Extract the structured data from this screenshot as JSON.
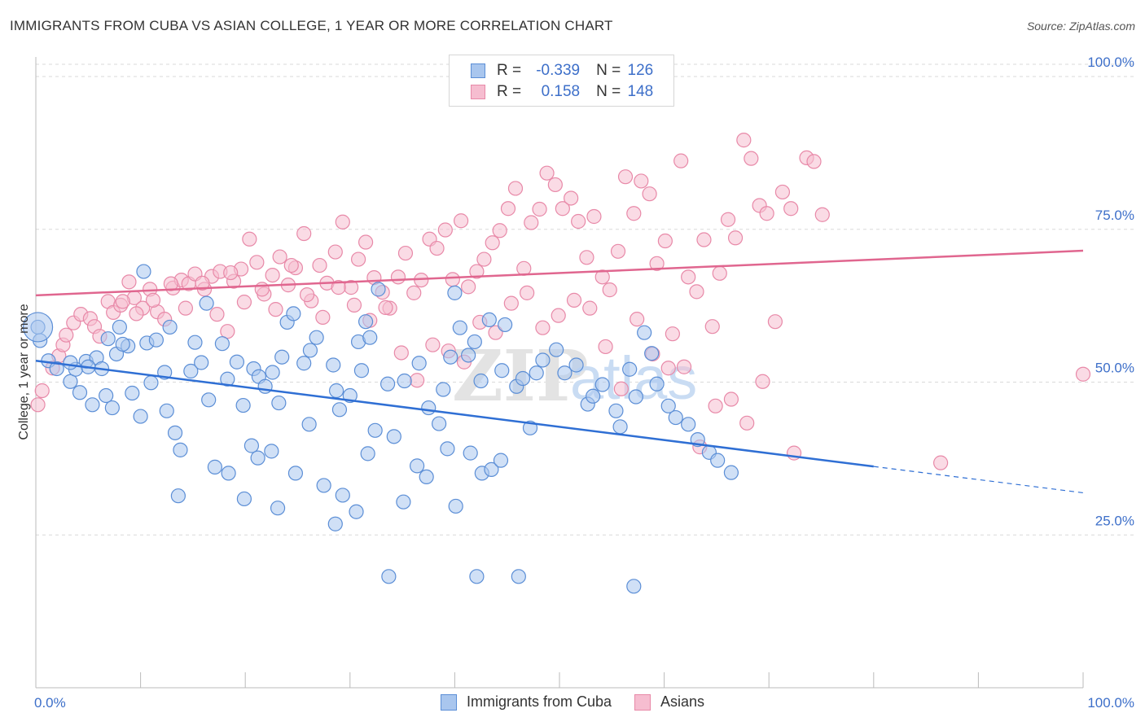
{
  "header": {
    "title": "IMMIGRANTS FROM CUBA VS ASIAN COLLEGE, 1 YEAR OR MORE CORRELATION CHART",
    "source": "Source: ZipAtlas.com"
  },
  "legend": {
    "r_label": "R =",
    "n_label": "N =",
    "rows": [
      {
        "r": "-0.339",
        "n": "126"
      },
      {
        "r": "0.158",
        "n": "148"
      }
    ]
  },
  "watermark": {
    "zip": "ZIP",
    "atlas": "atlas"
  },
  "colors": {
    "blue_fill": "#a9c6ee",
    "blue_stroke": "#5b8ed6",
    "blue_line": "#2f6fd4",
    "pink_fill": "#f6bdd0",
    "pink_stroke": "#e889a8",
    "pink_line": "#e0668f",
    "tick_text": "#3d6fc9",
    "grid": "#d9d9d9"
  },
  "chart_data": {
    "type": "scatter",
    "title": "IMMIGRANTS FROM CUBA VS ASIAN COLLEGE, 1 YEAR OR MORE CORRELATION CHART",
    "xlabel": "",
    "ylabel": "College, 1 year or more",
    "xlim": [
      0,
      100
    ],
    "ylim": [
      0,
      102
    ],
    "x_tick_labels": [
      "0.0%",
      "100.0%"
    ],
    "y_ticks": [
      25,
      50,
      75,
      100
    ],
    "y_tick_labels": [
      "25.0%",
      "50.0%",
      "75.0%",
      "100.0%"
    ],
    "grid": "horizontal dashed",
    "legend_position": "bottom",
    "series": [
      {
        "name": "Immigrants from Cuba",
        "color": "#5b8ed6",
        "trend": {
          "x": [
            0,
            80
          ],
          "y": [
            53.5,
            36.2
          ],
          "dashed_to": [
            100,
            31.9
          ]
        },
        "points": [
          [
            0.2,
            59
          ],
          [
            0.4,
            56.8
          ],
          [
            1.2,
            53.5
          ],
          [
            2,
            52.2
          ],
          [
            3.3,
            50.1
          ],
          [
            4.8,
            53.4
          ],
          [
            3.8,
            52.1
          ],
          [
            5.8,
            54
          ],
          [
            5,
            52.5
          ],
          [
            3.3,
            53.2
          ],
          [
            4.2,
            48.3
          ],
          [
            5.4,
            46.3
          ],
          [
            6.9,
            57.1
          ],
          [
            6.3,
            52.2
          ],
          [
            6.7,
            47.8
          ],
          [
            7.3,
            45.8
          ],
          [
            8,
            59
          ],
          [
            7.7,
            54.6
          ],
          [
            8.8,
            55.9
          ],
          [
            8.3,
            56.2
          ],
          [
            9.2,
            48.2
          ],
          [
            10.3,
            68.1
          ],
          [
            10.6,
            56.4
          ],
          [
            11,
            49.9
          ],
          [
            10,
            44.4
          ],
          [
            11.5,
            56.9
          ],
          [
            12.3,
            51.6
          ],
          [
            12.5,
            45.3
          ],
          [
            12.8,
            59
          ],
          [
            13.3,
            41.7
          ],
          [
            13.8,
            38.9
          ],
          [
            14.8,
            51.8
          ],
          [
            15.2,
            56.5
          ],
          [
            15.8,
            53.2
          ],
          [
            16.5,
            47.1
          ],
          [
            16.3,
            62.9
          ],
          [
            17.8,
            56.3
          ],
          [
            18.3,
            50.5
          ],
          [
            19.2,
            53.3
          ],
          [
            19.8,
            46.2
          ],
          [
            20.8,
            52.2
          ],
          [
            21.3,
            50.9
          ],
          [
            21.9,
            49.3
          ],
          [
            22.6,
            51.6
          ],
          [
            24,
            59.8
          ],
          [
            23.5,
            54.1
          ],
          [
            23.2,
            46.6
          ],
          [
            24.6,
            61.2
          ],
          [
            25.6,
            53.1
          ],
          [
            26.2,
            55.2
          ],
          [
            26.8,
            57.3
          ],
          [
            28.4,
            52.8
          ],
          [
            28.7,
            48.6
          ],
          [
            29,
            45.5
          ],
          [
            30,
            47.8
          ],
          [
            30.8,
            56.6
          ],
          [
            31.5,
            59.9
          ],
          [
            31.9,
            57.3
          ],
          [
            31.1,
            51.9
          ],
          [
            32.7,
            65.2
          ],
          [
            33.6,
            49.7
          ],
          [
            34.2,
            41.1
          ],
          [
            35.2,
            50.2
          ],
          [
            36.6,
            53.1
          ],
          [
            37.5,
            45.8
          ],
          [
            38.9,
            48.8
          ],
          [
            39.6,
            54.1
          ],
          [
            40,
            64.6
          ],
          [
            40.5,
            58.9
          ],
          [
            41.3,
            54.4
          ],
          [
            41.9,
            56.6
          ],
          [
            42.5,
            50.2
          ],
          [
            43.3,
            60.2
          ],
          [
            44.5,
            51.9
          ],
          [
            44.8,
            59.4
          ],
          [
            45.9,
            49.3
          ],
          [
            46.5,
            50.6
          ],
          [
            47.2,
            42.5
          ],
          [
            47.8,
            51.5
          ],
          [
            48.4,
            53.6
          ],
          [
            49.7,
            55.3
          ],
          [
            50.5,
            51.5
          ],
          [
            51.6,
            52.8
          ],
          [
            52.7,
            46.4
          ],
          [
            53.2,
            47.7
          ],
          [
            54.1,
            49.6
          ],
          [
            55.4,
            45.3
          ],
          [
            55.8,
            42.7
          ],
          [
            56.7,
            52.1
          ],
          [
            57.3,
            47.6
          ],
          [
            58.1,
            58.1
          ],
          [
            58.8,
            54.7
          ],
          [
            59.3,
            49.7
          ],
          [
            60.4,
            46.1
          ],
          [
            61.1,
            44.2
          ],
          [
            62.3,
            43.1
          ],
          [
            63.2,
            40.6
          ],
          [
            64.3,
            38.5
          ],
          [
            65.1,
            37.2
          ],
          [
            66.4,
            35.2
          ],
          [
            13.6,
            31.4
          ],
          [
            17.1,
            36.1
          ],
          [
            18.4,
            35.1
          ],
          [
            19.9,
            30.9
          ],
          [
            20.6,
            39.6
          ],
          [
            21.2,
            37.6
          ],
          [
            22.5,
            38.7
          ],
          [
            23.1,
            29.4
          ],
          [
            24.8,
            35.1
          ],
          [
            26.1,
            43.1
          ],
          [
            27.5,
            33.1
          ],
          [
            28.6,
            26.8
          ],
          [
            29.3,
            31.5
          ],
          [
            30.6,
            28.8
          ],
          [
            31.7,
            38.3
          ],
          [
            32.4,
            42.1
          ],
          [
            33.7,
            18.2
          ],
          [
            35.1,
            30.4
          ],
          [
            36.4,
            36.3
          ],
          [
            37.3,
            34.5
          ],
          [
            38.5,
            43.2
          ],
          [
            39.3,
            39.1
          ],
          [
            40.1,
            29.7
          ],
          [
            41.5,
            38.4
          ],
          [
            42.6,
            35.1
          ],
          [
            42.1,
            18.2
          ],
          [
            43.5,
            35.7
          ],
          [
            44.4,
            37.2
          ],
          [
            46.1,
            18.2
          ],
          [
            57.1,
            16.6
          ]
        ]
      },
      {
        "name": "Asians",
        "color": "#e889a8",
        "trend": {
          "x": [
            0,
            100
          ],
          "y": [
            64.2,
            71.5
          ]
        },
        "points": [
          [
            0.2,
            46.3
          ],
          [
            0.6,
            48.6
          ],
          [
            1.6,
            52.3
          ],
          [
            2.2,
            54.3
          ],
          [
            2.6,
            56.1
          ],
          [
            2.9,
            57.7
          ],
          [
            3.6,
            59.7
          ],
          [
            4.3,
            61.1
          ],
          [
            5.2,
            60.4
          ],
          [
            5.6,
            59.1
          ],
          [
            6.1,
            57.5
          ],
          [
            6.9,
            63.2
          ],
          [
            7.4,
            61.4
          ],
          [
            8.1,
            62.6
          ],
          [
            8.9,
            66.4
          ],
          [
            9.4,
            63.8
          ],
          [
            10.2,
            62.1
          ],
          [
            10.9,
            65.2
          ],
          [
            11.6,
            61.5
          ],
          [
            12.3,
            60.3
          ],
          [
            13.1,
            65.4
          ],
          [
            13.9,
            66.7
          ],
          [
            14.6,
            66.1
          ],
          [
            15.2,
            67.7
          ],
          [
            16.1,
            65.2
          ],
          [
            16.8,
            67.3
          ],
          [
            17.6,
            68.1
          ],
          [
            18.3,
            58.3
          ],
          [
            18.9,
            66.5
          ],
          [
            19.6,
            68.5
          ],
          [
            20.4,
            73.4
          ],
          [
            21.1,
            69.6
          ],
          [
            21.8,
            64.4
          ],
          [
            22.6,
            67.5
          ],
          [
            23.3,
            70.5
          ],
          [
            24.1,
            65.9
          ],
          [
            24.8,
            68.7
          ],
          [
            25.6,
            74.3
          ],
          [
            26.3,
            63.3
          ],
          [
            27.1,
            69.1
          ],
          [
            27.8,
            66.2
          ],
          [
            28.6,
            71.3
          ],
          [
            29.3,
            76.2
          ],
          [
            30.1,
            65.5
          ],
          [
            30.8,
            70.1
          ],
          [
            31.5,
            72.9
          ],
          [
            32.3,
            67.1
          ],
          [
            33.1,
            64.7
          ],
          [
            33.8,
            62.1
          ],
          [
            34.6,
            67.2
          ],
          [
            35.3,
            71.1
          ],
          [
            36.1,
            64.6
          ],
          [
            36.8,
            66.7
          ],
          [
            37.6,
            73.4
          ],
          [
            38.3,
            71.9
          ],
          [
            39.1,
            74.9
          ],
          [
            39.8,
            66.8
          ],
          [
            40.6,
            76.4
          ],
          [
            41.3,
            65.6
          ],
          [
            42.1,
            68.1
          ],
          [
            42.8,
            70.1
          ],
          [
            43.6,
            72.8
          ],
          [
            44.3,
            74.8
          ],
          [
            45.1,
            78.4
          ],
          [
            45.8,
            81.7
          ],
          [
            46.6,
            68.6
          ],
          [
            47.3,
            76.1
          ],
          [
            48.1,
            78.3
          ],
          [
            48.8,
            84.2
          ],
          [
            49.6,
            82.3
          ],
          [
            50.3,
            78.4
          ],
          [
            51.1,
            80.1
          ],
          [
            51.8,
            76.3
          ],
          [
            52.6,
            70.4
          ],
          [
            53.3,
            77.1
          ],
          [
            54.1,
            67.2
          ],
          [
            54.8,
            65.1
          ],
          [
            55.6,
            71.4
          ],
          [
            56.3,
            83.6
          ],
          [
            57.1,
            77.6
          ],
          [
            57.8,
            82.9
          ],
          [
            58.6,
            80.8
          ],
          [
            59.3,
            69.4
          ],
          [
            60.1,
            73.1
          ],
          [
            60.8,
            57.9
          ],
          [
            61.6,
            86.2
          ],
          [
            62.3,
            67.2
          ],
          [
            63.1,
            64.8
          ],
          [
            63.8,
            73.3
          ],
          [
            64.6,
            59.1
          ],
          [
            65.3,
            67.8
          ],
          [
            66.1,
            76.6
          ],
          [
            66.8,
            73.6
          ],
          [
            67.6,
            89.6
          ],
          [
            68.3,
            86.6
          ],
          [
            69.1,
            78.9
          ],
          [
            69.8,
            77.6
          ],
          [
            70.6,
            59.9
          ],
          [
            71.3,
            81.1
          ],
          [
            72.1,
            78.4
          ],
          [
            73.6,
            86.7
          ],
          [
            74.3,
            86.1
          ],
          [
            75.1,
            77.4
          ],
          [
            8.3,
            63.2
          ],
          [
            9.6,
            61.2
          ],
          [
            11.2,
            63.4
          ],
          [
            12.9,
            66.1
          ],
          [
            14.3,
            62.1
          ],
          [
            15.9,
            66.2
          ],
          [
            17.3,
            61.1
          ],
          [
            18.6,
            67.9
          ],
          [
            19.9,
            63.1
          ],
          [
            21.6,
            65.2
          ],
          [
            22.9,
            61.9
          ],
          [
            24.4,
            69.1
          ],
          [
            25.9,
            64.3
          ],
          [
            27.4,
            60.6
          ],
          [
            28.9,
            65.5
          ],
          [
            30.4,
            62.6
          ],
          [
            31.9,
            60.1
          ],
          [
            33.4,
            62.2
          ],
          [
            34.9,
            54.8
          ],
          [
            36.4,
            50.3
          ],
          [
            37.9,
            56.1
          ],
          [
            39.4,
            55.1
          ],
          [
            40.9,
            53.3
          ],
          [
            42.4,
            59.8
          ],
          [
            43.9,
            58.1
          ],
          [
            45.4,
            62.9
          ],
          [
            46.9,
            64.6
          ],
          [
            48.4,
            58.9
          ],
          [
            49.9,
            60.9
          ],
          [
            51.4,
            63.4
          ],
          [
            52.9,
            62.1
          ],
          [
            54.4,
            55.8
          ],
          [
            55.9,
            48.9
          ],
          [
            57.4,
            60.3
          ],
          [
            58.9,
            54.6
          ],
          [
            60.4,
            52.3
          ],
          [
            61.9,
            52.5
          ],
          [
            63.4,
            39.4
          ],
          [
            64.9,
            46.1
          ],
          [
            66.4,
            47.2
          ],
          [
            67.9,
            43.3
          ],
          [
            69.4,
            50.1
          ],
          [
            72.4,
            38.4
          ],
          [
            86.4,
            36.8
          ],
          [
            100,
            51.3
          ]
        ]
      }
    ]
  }
}
